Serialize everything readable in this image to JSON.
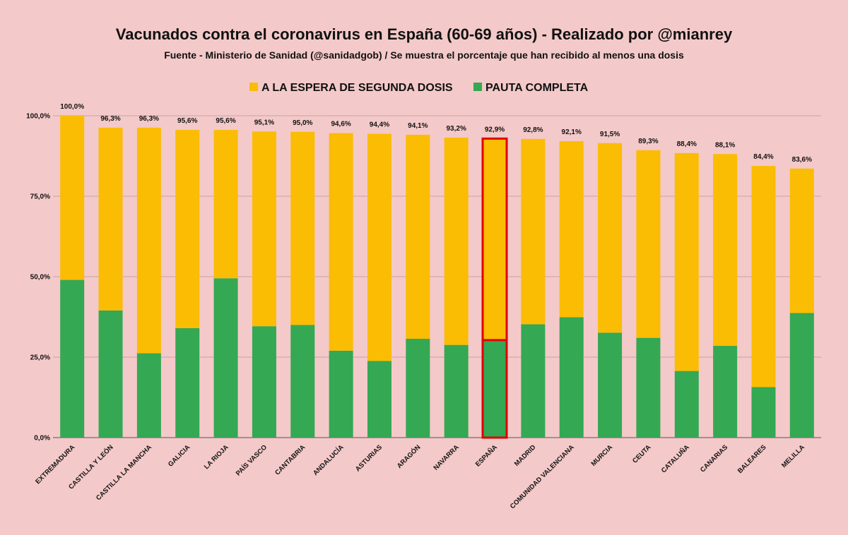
{
  "colors": {
    "background": "#f4c9c9",
    "pending": "#fbbc04",
    "complete": "#34a853",
    "highlight": "#e00000",
    "grid": "#c9a3a3"
  },
  "chart_data": {
    "type": "bar",
    "stacked": true,
    "title": "Vacunados contra el coronavirus en España (60-69 años) - Realizado por @mianrey",
    "subtitle": "Fuente - Ministerio de Sanidad (@sanidadgob) / Se muestra el porcentaje que han recibido al menos una dosis",
    "legend_position": "top",
    "grid": true,
    "ylim": [
      0,
      100
    ],
    "yticks": [
      0,
      25,
      50,
      75,
      100
    ],
    "ytick_labels": [
      "0,0%",
      "25,0%",
      "50,0%",
      "75,0%",
      "100,0%"
    ],
    "highlight_category": "ESPAÑA",
    "categories": [
      "EXTREMADURA",
      "CASTILLA Y LEÓN",
      "CASTILLA LA MANCHA",
      "GALICIA",
      "LA RIOJA",
      "PAÍS VASCO",
      "CANTABRIA",
      "ANDALUCÍA",
      "ASTURIAS",
      "ARAGÓN",
      "NAVARRA",
      "ESPAÑA",
      "MADRID",
      "COMUNIDAD VALENCIANA",
      "MURCIA",
      "CEUTA",
      "CATALUÑA",
      "CANARIAS",
      "BALEARES",
      "MELILLA"
    ],
    "totals": [
      100.0,
      96.3,
      96.3,
      95.6,
      95.6,
      95.1,
      95.0,
      94.6,
      94.4,
      94.1,
      93.2,
      92.9,
      92.8,
      92.1,
      91.5,
      89.3,
      88.4,
      88.1,
      84.4,
      83.6
    ],
    "total_labels": [
      "100,0%",
      "96,3%",
      "96,3%",
      "95,6%",
      "95,6%",
      "95,1%",
      "95,0%",
      "94,6%",
      "94,4%",
      "94,1%",
      "93,2%",
      "92,9%",
      "92,8%",
      "92,1%",
      "91,5%",
      "89,3%",
      "88,4%",
      "88,1%",
      "84,4%",
      "83,6%"
    ],
    "series": [
      {
        "name": "PAUTA COMPLETA",
        "color": "#34a853",
        "values": [
          49.0,
          39.5,
          26.2,
          34.0,
          49.5,
          34.6,
          35.0,
          27.0,
          23.8,
          30.7,
          28.8,
          30.3,
          35.2,
          37.4,
          32.6,
          31.0,
          20.7,
          28.5,
          15.7,
          38.7
        ]
      },
      {
        "name": "A LA ESPERA DE SEGUNDA DOSIS",
        "color": "#fbbc04",
        "values": [
          51.0,
          56.8,
          70.1,
          61.6,
          46.1,
          60.5,
          60.0,
          67.6,
          70.6,
          63.4,
          64.4,
          62.6,
          57.6,
          54.7,
          58.9,
          58.3,
          67.7,
          59.6,
          68.7,
          44.9
        ]
      }
    ]
  }
}
